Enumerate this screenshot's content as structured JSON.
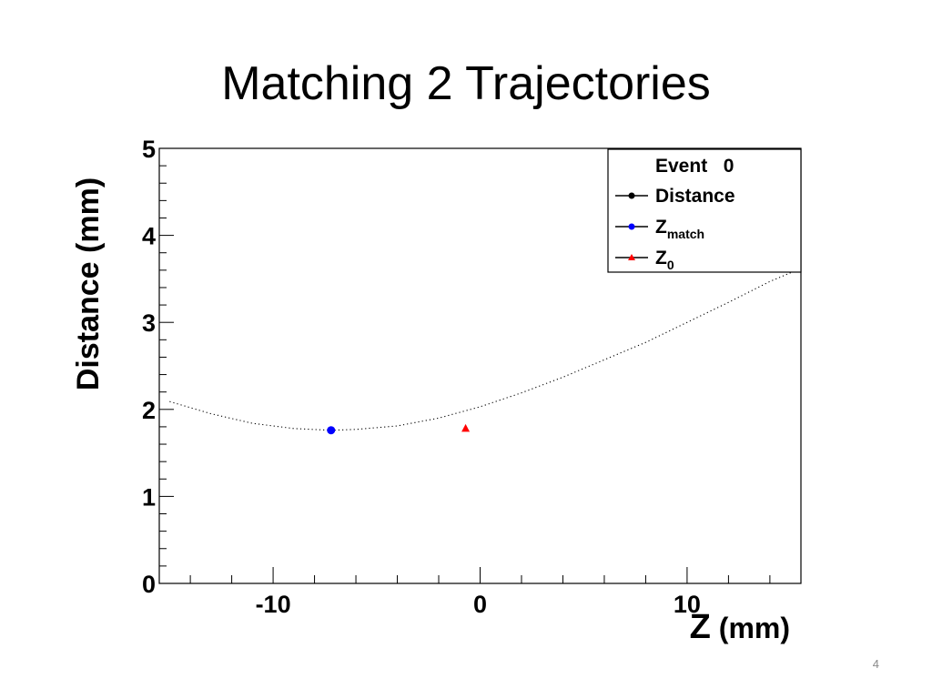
{
  "slide": {
    "title": "Matching 2 Trajectories",
    "page_number": "4"
  },
  "chart_data": {
    "type": "scatter",
    "xlabel_main": "Z",
    "xlabel_unit": " (mm)",
    "ylabel": "Distance (mm)",
    "xlim": [
      -15.5,
      15.5
    ],
    "ylim": [
      0,
      5
    ],
    "x_ticks": [
      -10,
      0,
      10
    ],
    "y_ticks": [
      0,
      1,
      2,
      3,
      4,
      5
    ],
    "grid": false,
    "legend_placement": "top-right",
    "legend": {
      "header": "Event   0",
      "entries": [
        {
          "label": "Distance",
          "sub": "",
          "color": "#000000",
          "marker": "circle"
        },
        {
          "label": "Z",
          "sub": "match",
          "color": "#0000ff",
          "marker": "circle"
        },
        {
          "label": "Z",
          "sub": "0",
          "color": "#ff0000",
          "marker": "triangle"
        }
      ]
    },
    "series": [
      {
        "name": "Distance",
        "color": "#000000",
        "style": "dotted",
        "x": [
          -15.0,
          -13.0,
          -11.0,
          -9.0,
          -7.2,
          -6.0,
          -4.0,
          -2.0,
          0.0,
          2.0,
          4.0,
          6.0,
          8.0,
          10.0,
          12.0,
          14.0,
          15.5
        ],
        "y": [
          2.09,
          1.95,
          1.84,
          1.78,
          1.76,
          1.77,
          1.81,
          1.9,
          2.03,
          2.19,
          2.37,
          2.57,
          2.77,
          3.0,
          3.23,
          3.47,
          3.62
        ]
      },
      {
        "name": "Z_match",
        "color": "#0000ff",
        "marker": "circle",
        "x": [
          -7.2
        ],
        "y": [
          1.76
        ]
      },
      {
        "name": "Z_0",
        "color": "#ff0000",
        "marker": "triangle",
        "x": [
          -0.7
        ],
        "y": [
          1.78
        ]
      }
    ]
  }
}
